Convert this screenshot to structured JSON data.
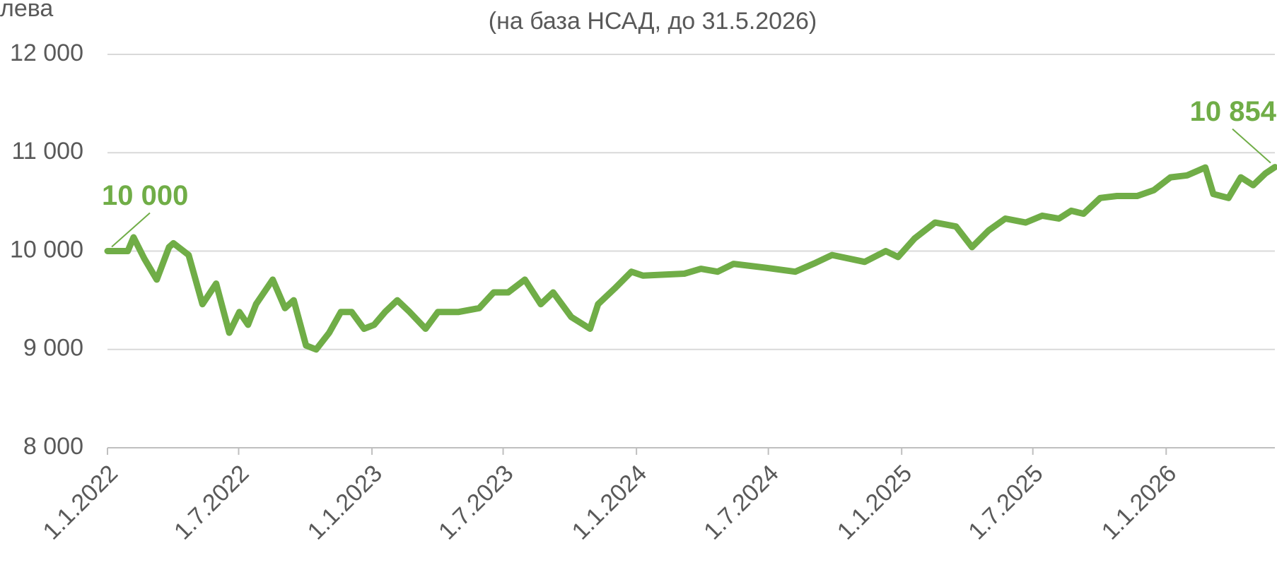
{
  "chart_data": {
    "type": "line",
    "subtitle": "(на база НСАД, до 31.5.2026)",
    "y_label": "лева",
    "color": "#70ad47",
    "grid": true,
    "x": [
      "2022-01-01",
      "2022-01-29",
      "2022-02-06",
      "2022-02-21",
      "2022-03-10",
      "2022-03-27",
      "2022-04-02",
      "2022-04-23",
      "2022-05-01",
      "2022-05-12",
      "2022-05-31",
      "2022-06-18",
      "2022-07-02",
      "2022-07-14",
      "2022-07-25",
      "2022-08-17",
      "2022-09-03",
      "2022-09-15",
      "2022-10-02",
      "2022-10-16",
      "2022-11-03",
      "2022-11-19",
      "2022-12-04",
      "2022-12-21",
      "2023-01-04",
      "2023-01-19",
      "2023-02-05",
      "2023-02-22",
      "2023-03-16",
      "2023-04-02",
      "2023-04-30",
      "2023-05-29",
      "2023-06-18",
      "2023-07-08",
      "2023-07-31",
      "2023-08-22",
      "2023-09-08",
      "2023-10-03",
      "2023-10-29",
      "2023-11-09",
      "2023-12-02",
      "2023-12-25",
      "2024-01-10",
      "2024-03-07",
      "2024-03-30",
      "2024-04-22",
      "2024-05-14",
      "2024-06-28",
      "2024-08-07",
      "2024-09-04",
      "2024-09-27",
      "2024-11-11",
      "2024-12-10",
      "2024-12-27",
      "2025-01-19",
      "2025-02-16",
      "2025-03-17",
      "2025-04-08",
      "2025-05-01",
      "2025-05-24",
      "2025-06-21",
      "2025-07-14",
      "2025-08-06",
      "2025-08-23",
      "2025-09-09",
      "2025-10-02",
      "2025-10-25",
      "2025-11-22",
      "2025-12-15",
      "2026-01-07",
      "2026-01-30",
      "2026-02-24",
      "2026-03-07",
      "2026-03-28",
      "2026-04-14",
      "2026-05-01",
      "2026-05-18",
      "2026-05-31"
    ],
    "values": [
      10000,
      10000,
      10140,
      9920,
      9710,
      10040,
      10080,
      9960,
      9750,
      9460,
      9670,
      9170,
      9380,
      9250,
      9460,
      9710,
      9420,
      9500,
      9040,
      9000,
      9170,
      9380,
      9380,
      9210,
      9250,
      9380,
      9500,
      9380,
      9210,
      9380,
      9380,
      9420,
      9580,
      9580,
      9710,
      9460,
      9580,
      9330,
      9210,
      9460,
      9620,
      9790,
      9750,
      9770,
      9820,
      9790,
      9870,
      9830,
      9790,
      9880,
      9960,
      9890,
      10000,
      9940,
      10130,
      10290,
      10250,
      10040,
      10210,
      10330,
      10290,
      10360,
      10330,
      10410,
      10380,
      10540,
      10560,
      10560,
      10620,
      10750,
      10770,
      10850,
      10580,
      10540,
      10750,
      10670,
      10790,
      10854
    ],
    "value_labels": [
      "10 000",
      null,
      null,
      null,
      null,
      null,
      null,
      null,
      null,
      null,
      null,
      null,
      null,
      null,
      null,
      null,
      null,
      null,
      null,
      null,
      null,
      null,
      null,
      null,
      null,
      null,
      null,
      null,
      null,
      null,
      null,
      null,
      null,
      null,
      null,
      null,
      null,
      null,
      null,
      null,
      null,
      null,
      null,
      null,
      null,
      null,
      null,
      null,
      null,
      null,
      null,
      null,
      null,
      null,
      null,
      null,
      null,
      null,
      null,
      null,
      null,
      null,
      null,
      null,
      null,
      null,
      null,
      null,
      null,
      null,
      null,
      null,
      null,
      null,
      null,
      null,
      null,
      "10 854"
    ],
    "xlim": [
      "2022-01-01",
      "2026-05-31"
    ],
    "xticks": [
      {
        "value": "2022-01-01",
        "label": "1.1.2022"
      },
      {
        "value": "2022-07-01",
        "label": "1.7.2022"
      },
      {
        "value": "2023-01-01",
        "label": "1.1.2023"
      },
      {
        "value": "2023-07-01",
        "label": "1.7.2023"
      },
      {
        "value": "2024-01-01",
        "label": "1.1.2024"
      },
      {
        "value": "2024-07-01",
        "label": "1.7.2024"
      },
      {
        "value": "2025-01-01",
        "label": "1.1.2025"
      },
      {
        "value": "2025-07-01",
        "label": "1.7.2025"
      },
      {
        "value": "2026-01-01",
        "label": "1.1.2026"
      }
    ],
    "ylim": [
      8000,
      12000
    ],
    "yticks": [
      {
        "value": 8000,
        "label": "8 000"
      },
      {
        "value": 9000,
        "label": "9 000"
      },
      {
        "value": 10000,
        "label": "10 000"
      },
      {
        "value": 11000,
        "label": "11 000"
      },
      {
        "value": 12000,
        "label": "12 000"
      }
    ]
  }
}
